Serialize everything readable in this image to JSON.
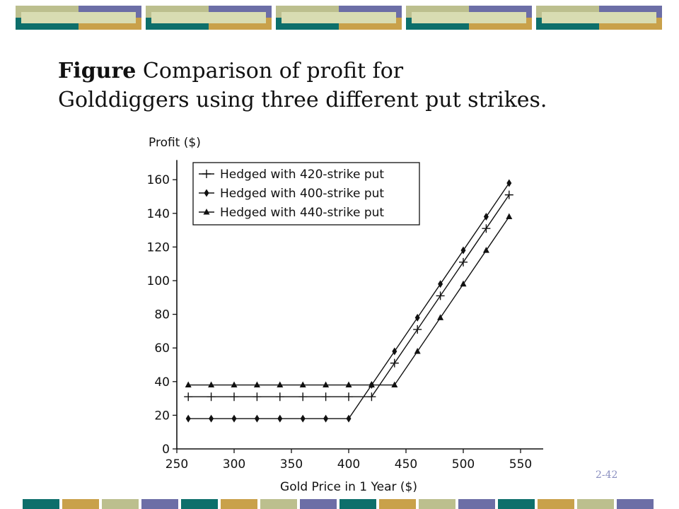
{
  "slide": {
    "title_bold": "Figure",
    "title_rest": " Comparison of profit for",
    "title_line2": "Golddiggers using three different put strikes.",
    "page_number": "2-42"
  },
  "colors": {
    "teal": "#0d6f6b",
    "gold": "#c9a14a",
    "olive": "#bcbf8e",
    "purple": "#6c6ea6",
    "pale": "#d8dcb2"
  },
  "chart_data": {
    "type": "line",
    "ylabel": "Profit ($)",
    "xlabel": "Gold Price in 1 Year ($)",
    "xlim": [
      250,
      550
    ],
    "ylim": [
      0,
      170
    ],
    "xticks": [
      250,
      300,
      350,
      400,
      450,
      500,
      550
    ],
    "yticks": [
      0,
      20,
      40,
      60,
      80,
      100,
      120,
      140,
      160
    ],
    "x": [
      260,
      280,
      300,
      320,
      340,
      360,
      380,
      400,
      420,
      440,
      460,
      480,
      500,
      520,
      540
    ],
    "legend_position": "top-left",
    "series": [
      {
        "name": "Hedged with 420-strike put",
        "marker": "plus",
        "values": [
          31,
          31,
          31,
          31,
          31,
          31,
          31,
          31,
          31,
          51,
          71,
          91,
          111,
          131,
          151
        ]
      },
      {
        "name": "Hedged with 400-strike put",
        "marker": "diamond",
        "values": [
          18,
          18,
          18,
          18,
          18,
          18,
          18,
          18,
          38,
          58,
          78,
          98,
          118,
          138,
          158
        ]
      },
      {
        "name": "Hedged with 440-strike put",
        "marker": "triangle",
        "values": [
          38,
          38,
          38,
          38,
          38,
          38,
          38,
          38,
          38,
          38,
          58,
          78,
          98,
          118,
          138
        ]
      }
    ]
  }
}
